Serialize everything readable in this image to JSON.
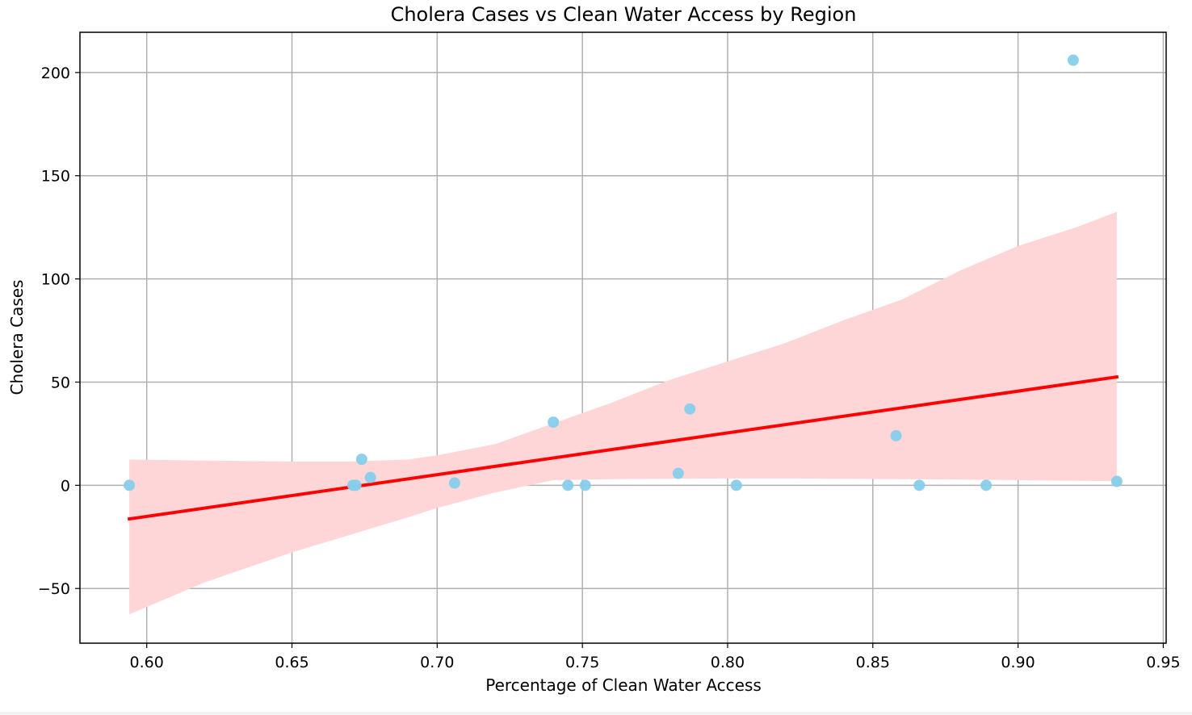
{
  "chart_data": {
    "type": "scatter",
    "title": "Cholera Cases vs Clean Water Access by Region",
    "xlabel": "Percentage of Clean Water Access",
    "ylabel": "Cholera Cases",
    "xlim": [
      0.577,
      0.951
    ],
    "ylim": [
      -76.5,
      219.5
    ],
    "xticks": [
      0.6,
      0.65,
      0.7,
      0.75,
      0.8,
      0.85,
      0.9,
      0.95
    ],
    "xtick_labels": [
      "0.60",
      "0.65",
      "0.70",
      "0.75",
      "0.80",
      "0.85",
      "0.90",
      "0.95"
    ],
    "yticks": [
      -50,
      0,
      50,
      100,
      150,
      200
    ],
    "ytick_labels": [
      "−50",
      "0",
      "50",
      "100",
      "150",
      "200"
    ],
    "grid": true,
    "colors": {
      "points": "#87ceeb",
      "regression_line": "#ff0000",
      "confidence_band": "#ffd6d8",
      "grid": "#b0b0b0"
    },
    "points": [
      {
        "x": 0.594,
        "y": 0
      },
      {
        "x": 0.671,
        "y": 0
      },
      {
        "x": 0.672,
        "y": 0
      },
      {
        "x": 0.674,
        "y": 12.6
      },
      {
        "x": 0.677,
        "y": 3.8
      },
      {
        "x": 0.706,
        "y": 1.1
      },
      {
        "x": 0.74,
        "y": 30.6
      },
      {
        "x": 0.745,
        "y": 0
      },
      {
        "x": 0.751,
        "y": 0
      },
      {
        "x": 0.783,
        "y": 5.8
      },
      {
        "x": 0.787,
        "y": 37.0
      },
      {
        "x": 0.803,
        "y": 0
      },
      {
        "x": 0.858,
        "y": 24.0
      },
      {
        "x": 0.866,
        "y": 0
      },
      {
        "x": 0.889,
        "y": 0
      },
      {
        "x": 0.919,
        "y": 206.0
      },
      {
        "x": 0.934,
        "y": 1.9
      }
    ],
    "regression": {
      "x": [
        0.594,
        0.934
      ],
      "y": [
        -16.3,
        52.5
      ]
    },
    "confidence_band": {
      "x": [
        0.594,
        0.62,
        0.65,
        0.67,
        0.69,
        0.7,
        0.72,
        0.74,
        0.76,
        0.78,
        0.8,
        0.82,
        0.84,
        0.86,
        0.88,
        0.9,
        0.92,
        0.934
      ],
      "upper": [
        12.5,
        12.0,
        11.5,
        11.5,
        12.5,
        14.5,
        20.0,
        30.0,
        40.0,
        51.0,
        60.0,
        69.0,
        80.0,
        90.0,
        104.0,
        116.0,
        125.0,
        132.5
      ],
      "lower": [
        -62.5,
        -47.0,
        -32.5,
        -24.0,
        -15.5,
        -11.0,
        -3.5,
        2.5,
        3.0,
        3.2,
        3.3,
        3.3,
        3.2,
        3.0,
        2.8,
        2.5,
        2.2,
        2.0
      ]
    }
  }
}
